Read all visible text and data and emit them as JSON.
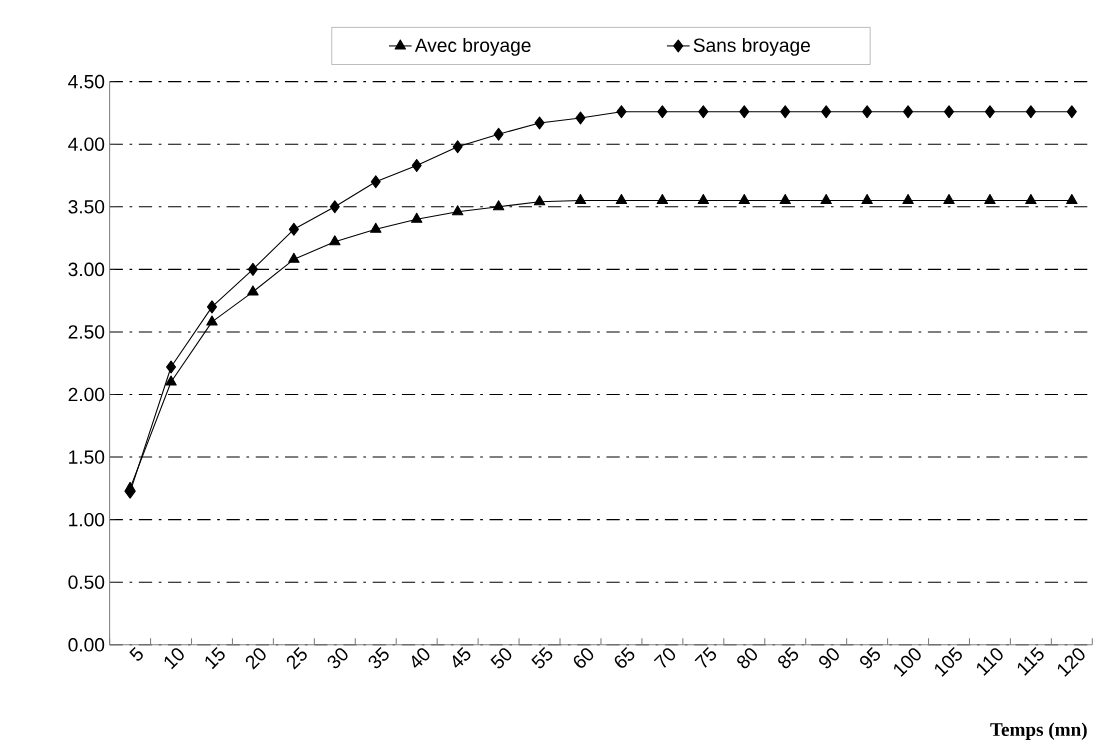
{
  "chart_data": {
    "type": "line",
    "xlabel": "Temps (mn)",
    "categories": [
      "5",
      "10",
      "15",
      "20",
      "25",
      "30",
      "35",
      "40",
      "45",
      "50",
      "55",
      "60",
      "65",
      "70",
      "75",
      "80",
      "85",
      "90",
      "95",
      "100",
      "105",
      "110",
      "115",
      "120"
    ],
    "series": [
      {
        "name": "Avec broyage",
        "color": "#000000",
        "marker": "triangle",
        "values": [
          1.25,
          2.1,
          2.58,
          2.82,
          3.08,
          3.22,
          3.32,
          3.4,
          3.46,
          3.5,
          3.54,
          3.55,
          3.55,
          3.55,
          3.55,
          3.55,
          3.55,
          3.55,
          3.55,
          3.55,
          3.55,
          3.55,
          3.55,
          3.55
        ]
      },
      {
        "name": "Sans broyage",
        "color": "#000000",
        "marker": "diamond",
        "values": [
          1.22,
          2.22,
          2.7,
          3.0,
          3.32,
          3.5,
          3.7,
          3.83,
          3.98,
          4.08,
          4.17,
          4.21,
          4.26,
          4.26,
          4.26,
          4.26,
          4.26,
          4.26,
          4.26,
          4.26,
          4.26,
          4.26,
          4.26,
          4.26
        ]
      }
    ],
    "ylim": [
      0,
      4.5
    ],
    "yticks": [
      {
        "value": 0,
        "label": "0.00"
      },
      {
        "value": 0.5,
        "label": "0.50"
      },
      {
        "value": 1,
        "label": "1.00"
      },
      {
        "value": 1.5,
        "label": "1.50"
      },
      {
        "value": 2,
        "label": "2.00"
      },
      {
        "value": 2.5,
        "label": "2.50"
      },
      {
        "value": 3,
        "label": "3.00"
      },
      {
        "value": 3.5,
        "label": "3.50"
      },
      {
        "value": 4,
        "label": "4.00"
      },
      {
        "value": 4.5,
        "label": "4.50"
      }
    ],
    "grid": "y",
    "legend": "top",
    "line_style": "solid"
  }
}
